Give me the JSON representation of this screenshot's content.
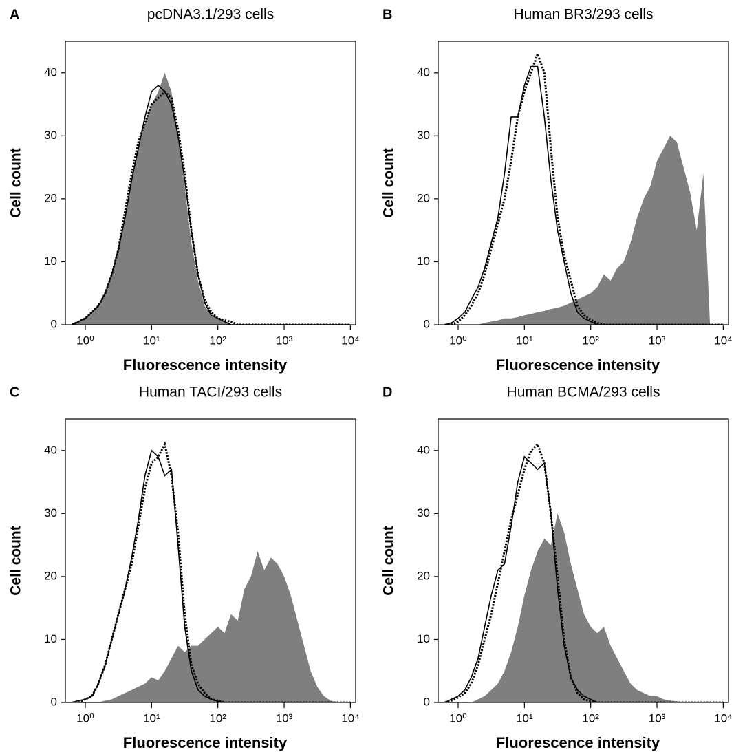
{
  "chart_data": [
    {
      "type": "line",
      "panel": "A",
      "title": "pcDNA3.1/293 cells",
      "x_label": "Fluorescence intensity",
      "y_label": "Cell count",
      "log_x": true,
      "xlim": [
        0.5,
        12000
      ],
      "ylim": [
        0,
        45
      ],
      "xticks": [
        {
          "value": 1,
          "label": "10⁰"
        },
        {
          "value": 10,
          "label": "10¹"
        },
        {
          "value": 100,
          "label": "10²"
        },
        {
          "value": 1000,
          "label": "10³"
        },
        {
          "value": 10000,
          "label": "10⁴"
        }
      ],
      "yticks": [
        0,
        10,
        20,
        30,
        40
      ],
      "x": [
        0.63,
        0.79,
        1,
        1.26,
        1.58,
        2,
        2.51,
        3.16,
        3.98,
        5.01,
        6.31,
        7.94,
        10,
        12.6,
        15.8,
        20,
        25.1,
        31.6,
        39.8,
        50.1,
        63.1,
        79.4,
        100,
        126,
        158,
        200,
        251,
        316,
        398,
        501,
        631,
        794,
        1000,
        1259,
        1585,
        1995,
        2512,
        3162,
        3981,
        5012,
        6310,
        7943,
        10000
      ],
      "series": [
        {
          "color": "#7f7f7f",
          "style": "filled",
          "values": [
            0,
            0.5,
            1,
            2,
            3,
            5,
            8,
            12,
            17,
            23,
            28,
            32,
            35,
            37,
            40,
            37,
            30,
            22,
            13,
            7,
            3,
            1.5,
            1,
            0.5,
            0,
            0,
            0,
            0,
            0,
            0,
            0,
            0,
            0,
            0,
            0,
            0,
            0,
            0,
            0,
            0,
            0,
            0,
            0
          ]
        },
        {
          "color": "#000000",
          "style": "solid",
          "values": [
            0,
            0.5,
            1,
            2,
            3,
            5,
            8,
            12,
            17,
            23,
            28,
            33,
            37,
            38,
            37,
            35,
            30,
            23,
            15,
            8,
            3.5,
            1.5,
            1,
            0.5,
            0,
            0,
            0,
            0,
            0,
            0,
            0,
            0,
            0,
            0,
            0,
            0,
            0,
            0,
            0,
            0,
            0,
            0,
            0
          ]
        },
        {
          "color": "#000000",
          "style": "dotted",
          "values": [
            0,
            0.5,
            1,
            2,
            3,
            5,
            8,
            12,
            18,
            24,
            29,
            32,
            35,
            36,
            37,
            36,
            31,
            24,
            15,
            8,
            4,
            2,
            1,
            0.7,
            0.5,
            0,
            0,
            0,
            0,
            0,
            0,
            0,
            0,
            0,
            0,
            0,
            0,
            0,
            0,
            0,
            0,
            0,
            0
          ]
        }
      ]
    },
    {
      "type": "line",
      "panel": "B",
      "title": "Human BR3/293 cells",
      "x_label": "Fluorescence intensity",
      "y_label": "Cell count",
      "log_x": true,
      "xlim": [
        0.5,
        12000
      ],
      "ylim": [
        0,
        45
      ],
      "xticks": [
        {
          "value": 1,
          "label": "10⁰"
        },
        {
          "value": 10,
          "label": "10¹"
        },
        {
          "value": 100,
          "label": "10²"
        },
        {
          "value": 1000,
          "label": "10³"
        },
        {
          "value": 10000,
          "label": "10⁴"
        }
      ],
      "yticks": [
        0,
        10,
        20,
        30,
        40
      ],
      "x": [
        0.63,
        0.79,
        1,
        1.26,
        1.58,
        2,
        2.51,
        3.16,
        3.98,
        5.01,
        6.31,
        7.94,
        10,
        12.6,
        15.8,
        20,
        25.1,
        31.6,
        39.8,
        50.1,
        63.1,
        79.4,
        100,
        126,
        158,
        200,
        251,
        316,
        398,
        501,
        631,
        794,
        1000,
        1259,
        1585,
        1995,
        2512,
        3162,
        3981,
        5012,
        6310,
        7943,
        10000
      ],
      "series": [
        {
          "color": "#7f7f7f",
          "style": "filled",
          "values": [
            0,
            0,
            0,
            0,
            0,
            0,
            0.3,
            0.5,
            0.7,
            1,
            1,
            1.2,
            1.5,
            1.7,
            2,
            2.2,
            2.5,
            2.7,
            3,
            3.5,
            4,
            4.5,
            5,
            6,
            8,
            7,
            9,
            10,
            13,
            17,
            20,
            22,
            26,
            28,
            30,
            29,
            25,
            21,
            15,
            24,
            0,
            0,
            0
          ]
        },
        {
          "color": "#000000",
          "style": "solid",
          "values": [
            0,
            0.3,
            1,
            2,
            4,
            6,
            9,
            13,
            17,
            24,
            33,
            33,
            38,
            41,
            41,
            33,
            23,
            15,
            10,
            5,
            2,
            1,
            0.5,
            0,
            0,
            0,
            0,
            0,
            0,
            0,
            0,
            0,
            0,
            0,
            0,
            0,
            0,
            0,
            0,
            0,
            0,
            0,
            0
          ]
        },
        {
          "color": "#000000",
          "style": "dotted",
          "values": [
            0,
            0,
            0.5,
            1.5,
            3,
            5,
            8,
            12,
            16,
            20,
            26,
            33,
            37,
            40,
            43,
            40,
            28,
            17,
            11,
            7,
            3,
            1.5,
            0.8,
            0.3,
            0,
            0,
            0,
            0,
            0,
            0,
            0,
            0,
            0,
            0,
            0,
            0,
            0,
            0,
            0,
            0,
            0,
            0,
            0
          ]
        }
      ]
    },
    {
      "type": "line",
      "panel": "C",
      "title": "Human TACI/293 cells",
      "x_label": "Fluorescence intensity",
      "y_label": "Cell count",
      "log_x": true,
      "xlim": [
        0.5,
        12000
      ],
      "ylim": [
        0,
        45
      ],
      "xticks": [
        {
          "value": 1,
          "label": "10⁰"
        },
        {
          "value": 10,
          "label": "10¹"
        },
        {
          "value": 100,
          "label": "10²"
        },
        {
          "value": 1000,
          "label": "10³"
        },
        {
          "value": 10000,
          "label": "10⁴"
        }
      ],
      "yticks": [
        0,
        10,
        20,
        30,
        40
      ],
      "x": [
        0.63,
        0.79,
        1,
        1.26,
        1.58,
        2,
        2.51,
        3.16,
        3.98,
        5.01,
        6.31,
        7.94,
        10,
        12.6,
        15.8,
        20,
        25.1,
        31.6,
        39.8,
        50.1,
        63.1,
        79.4,
        100,
        126,
        158,
        200,
        251,
        316,
        398,
        501,
        631,
        794,
        1000,
        1259,
        1585,
        1995,
        2512,
        3162,
        3981,
        5012,
        6310,
        7943,
        10000
      ],
      "series": [
        {
          "color": "#7f7f7f",
          "style": "filled",
          "values": [
            0,
            0,
            0,
            0,
            0,
            0.3,
            0.5,
            1,
            1.5,
            2,
            2.5,
            3,
            4,
            3.5,
            5,
            7,
            9,
            8,
            9,
            9,
            10,
            11,
            12,
            11,
            14,
            13,
            18,
            20,
            24,
            21,
            23,
            22,
            20,
            17,
            13,
            9,
            5,
            2.5,
            1,
            0.3,
            0,
            0,
            0
          ]
        },
        {
          "color": "#000000",
          "style": "solid",
          "values": [
            0,
            0.3,
            0.5,
            1,
            3,
            6,
            10,
            14,
            18,
            23,
            29,
            36,
            40,
            39,
            36,
            37,
            25,
            12,
            5,
            2,
            1,
            0.5,
            0.2,
            0,
            0,
            0,
            0,
            0,
            0,
            0,
            0,
            0,
            0,
            0,
            0,
            0,
            0,
            0,
            0,
            0,
            0,
            0,
            0
          ]
        },
        {
          "color": "#000000",
          "style": "dotted",
          "values": [
            0,
            0,
            0.5,
            1,
            3,
            6,
            10,
            14,
            18,
            22,
            28,
            34,
            38,
            39,
            41,
            36,
            27,
            14,
            6,
            3,
            1.5,
            0.5,
            0.3,
            0,
            0,
            0,
            0,
            0,
            0,
            0,
            0,
            0,
            0,
            0,
            0,
            0,
            0,
            0,
            0,
            0,
            0,
            0,
            0
          ]
        }
      ]
    },
    {
      "type": "line",
      "panel": "D",
      "title": "Human BCMA/293 cells",
      "x_label": "Fluorescence intensity",
      "y_label": "Cell count",
      "log_x": true,
      "xlim": [
        0.5,
        12000
      ],
      "ylim": [
        0,
        45
      ],
      "xticks": [
        {
          "value": 1,
          "label": "10⁰"
        },
        {
          "value": 10,
          "label": "10¹"
        },
        {
          "value": 100,
          "label": "10²"
        },
        {
          "value": 1000,
          "label": "10³"
        },
        {
          "value": 10000,
          "label": "10⁴"
        }
      ],
      "yticks": [
        0,
        10,
        20,
        30,
        40
      ],
      "x": [
        0.63,
        0.79,
        1,
        1.26,
        1.58,
        2,
        2.51,
        3.16,
        3.98,
        5.01,
        6.31,
        7.94,
        10,
        12.6,
        15.8,
        20,
        25.1,
        31.6,
        39.8,
        50.1,
        63.1,
        79.4,
        100,
        126,
        158,
        200,
        251,
        316,
        398,
        501,
        631,
        794,
        1000,
        1259,
        1585,
        1995,
        2512,
        3162,
        3981,
        5012,
        6310,
        7943,
        10000
      ],
      "series": [
        {
          "color": "#7f7f7f",
          "style": "filled",
          "values": [
            0,
            0,
            0,
            0,
            0,
            0.5,
            1,
            2,
            3,
            5,
            8,
            12,
            17,
            21,
            24,
            26,
            25,
            30,
            27,
            22,
            18,
            14,
            12,
            11,
            12,
            9,
            7,
            5,
            3,
            2,
            1.5,
            1,
            1,
            0.5,
            0.3,
            0.2,
            0,
            0,
            0,
            0,
            0,
            0,
            0
          ]
        },
        {
          "color": "#000000",
          "style": "solid",
          "values": [
            0,
            0.5,
            1,
            2,
            4,
            7,
            12,
            17,
            21,
            22,
            28,
            35,
            39,
            38,
            37,
            38,
            30,
            18,
            9,
            4,
            2,
            1,
            0.5,
            0,
            0,
            0,
            0,
            0,
            0,
            0,
            0,
            0,
            0,
            0,
            0,
            0,
            0,
            0,
            0,
            0,
            0,
            0,
            0
          ]
        },
        {
          "color": "#000000",
          "style": "dotted",
          "values": [
            0,
            0.3,
            0.8,
            1.5,
            3,
            6,
            10,
            14,
            19,
            24,
            29,
            33,
            37,
            40,
            41,
            38,
            30,
            20,
            10,
            4,
            1.5,
            0.5,
            0.2,
            0,
            0,
            0,
            0,
            0,
            0,
            0,
            0,
            0,
            0,
            0,
            0,
            0,
            0,
            0,
            0,
            0,
            0,
            0,
            0
          ]
        }
      ]
    }
  ]
}
